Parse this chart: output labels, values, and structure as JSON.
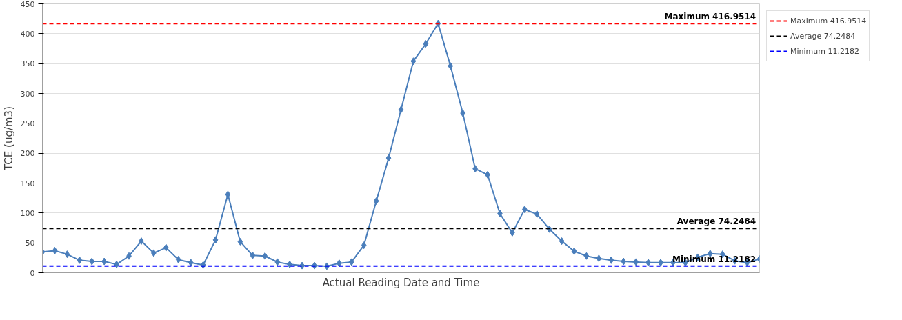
{
  "chart_data": {
    "type": "line",
    "xlabel": "Actual Reading Date and Time",
    "ylabel": "TCE (ug/m3)",
    "categories": [
      null,
      null,
      null,
      null,
      null,
      null,
      null,
      null,
      null,
      null,
      null,
      null,
      null,
      null,
      null,
      null,
      null,
      null,
      null,
      null,
      null,
      null,
      null,
      null,
      null,
      null,
      null,
      null,
      null,
      null,
      null,
      null,
      null,
      null,
      null,
      null,
      null,
      null,
      null,
      null,
      null,
      null,
      null,
      null,
      null,
      null,
      null,
      null,
      null,
      null,
      null,
      null,
      null,
      null,
      null,
      null,
      null,
      null,
      null
    ],
    "series": [
      {
        "color": "#4a7ebb",
        "values": [
          35,
          37,
          31,
          21,
          19,
          19,
          14,
          28,
          53,
          33,
          42,
          22,
          17,
          13,
          55,
          131,
          52,
          29,
          28,
          18,
          14,
          12,
          12,
          11,
          16,
          18,
          46,
          120,
          192,
          273,
          354,
          383,
          417,
          346,
          267,
          174,
          164,
          99,
          67,
          106,
          98,
          73,
          53,
          36,
          28,
          24,
          21,
          19,
          18,
          17,
          17,
          17,
          17,
          26,
          32,
          31,
          20,
          17,
          23
        ]
      }
    ],
    "ylim": [
      0,
      450
    ],
    "yticks": [
      0,
      50,
      100,
      150,
      200,
      250,
      300,
      350,
      400,
      450
    ],
    "ref_lines": [
      {
        "axis": "y",
        "value": 416.9514,
        "label": "Maximum 416.9514",
        "color": "#ff0000",
        "line_style": "dashed"
      },
      {
        "axis": "y",
        "value": 74.2484,
        "label": "Average 74.2484",
        "color": "#000000",
        "line_style": "dashed"
      },
      {
        "axis": "y",
        "value": 11.2182,
        "label": "Minimum 11.2182",
        "color": "#0000ff",
        "line_style": "dashed"
      }
    ],
    "grid": "y",
    "legend": "top right",
    "marker": "diamond",
    "line_style": "solid",
    "tick_labels": "y"
  }
}
